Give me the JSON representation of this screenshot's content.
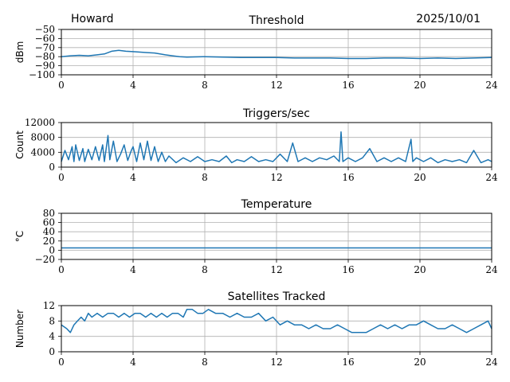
{
  "header": {
    "station": "Howard",
    "date": "2025/10/01"
  },
  "colors": {
    "series": "#1f77b4",
    "grid": "#b0b0b0"
  },
  "chart_data": [
    {
      "type": "line",
      "title": "Threshold",
      "ylabel": "dBm",
      "xlim": [
        0,
        24
      ],
      "ylim": [
        -100,
        -50
      ],
      "xticks": [
        0,
        4,
        8,
        12,
        16,
        20,
        24
      ],
      "xtick_labels": [
        "0",
        "4",
        "8",
        "12",
        "16",
        "20",
        "24"
      ],
      "yticks": [
        -50,
        -60,
        -70,
        -80,
        -90,
        -100
      ],
      "ytick_labels": [
        "−50",
        "−60",
        "−70",
        "−80",
        "−90",
        "−100"
      ],
      "grid": true,
      "series": [
        {
          "name": "threshold",
          "x": [
            0,
            0.5,
            1,
            1.5,
            2,
            2.4,
            2.8,
            3.2,
            3.6,
            4.0,
            4.4,
            4.8,
            5.2,
            5.5,
            5.8,
            6.2,
            6.6,
            7.0,
            8,
            9,
            10,
            11,
            12,
            13,
            14,
            15,
            16,
            17,
            18,
            19,
            20,
            21,
            22,
            23,
            24
          ],
          "y": [
            -80,
            -79,
            -78.5,
            -79,
            -78,
            -77,
            -74,
            -73,
            -74,
            -74.5,
            -75,
            -75.5,
            -76,
            -77,
            -78,
            -79,
            -80,
            -80.5,
            -80,
            -80.5,
            -81,
            -81,
            -81,
            -81.5,
            -81.5,
            -81.5,
            -82,
            -82,
            -81.5,
            -81.5,
            -82,
            -81.5,
            -82,
            -81.5,
            -81
          ]
        }
      ]
    },
    {
      "type": "line",
      "title": "Triggers/sec",
      "ylabel": "Count",
      "xlim": [
        0,
        24
      ],
      "ylim": [
        0,
        12000
      ],
      "xticks": [
        0,
        4,
        8,
        12,
        16,
        20,
        24
      ],
      "xtick_labels": [
        "0",
        "4",
        "8",
        "12",
        "16",
        "20",
        "24"
      ],
      "yticks": [
        0,
        4000,
        8000,
        12000
      ],
      "ytick_labels": [
        "0",
        "4000",
        "8000",
        "12000"
      ],
      "grid": true,
      "series": [
        {
          "name": "triggers",
          "x": [
            0,
            0.2,
            0.4,
            0.6,
            0.7,
            0.8,
            1.0,
            1.2,
            1.3,
            1.5,
            1.7,
            1.9,
            2.1,
            2.3,
            2.4,
            2.6,
            2.7,
            2.9,
            3.1,
            3.3,
            3.5,
            3.7,
            3.9,
            4.0,
            4.2,
            4.4,
            4.6,
            4.8,
            5.0,
            5.2,
            5.4,
            5.6,
            5.8,
            6.0,
            6.4,
            6.8,
            7.2,
            7.6,
            8.0,
            8.4,
            8.8,
            9.2,
            9.5,
            9.8,
            10.2,
            10.6,
            11.0,
            11.4,
            11.8,
            12.2,
            12.6,
            12.9,
            13.2,
            13.6,
            14.0,
            14.4,
            14.8,
            15.2,
            15.5,
            15.6,
            15.7,
            16.0,
            16.4,
            16.8,
            17.2,
            17.6,
            18.0,
            18.4,
            18.8,
            19.2,
            19.5,
            19.6,
            19.8,
            20.2,
            20.6,
            21.0,
            21.4,
            21.8,
            22.2,
            22.6,
            23.0,
            23.4,
            23.8,
            24.0
          ],
          "y": [
            1500,
            4500,
            2000,
            5500,
            1500,
            6000,
            1800,
            5000,
            1500,
            4800,
            2000,
            5500,
            1800,
            6000,
            1500,
            8500,
            2000,
            7000,
            1500,
            3500,
            6000,
            1800,
            4500,
            5500,
            1500,
            6500,
            2000,
            7000,
            1800,
            5500,
            1500,
            4000,
            1500,
            3000,
            1200,
            2500,
            1500,
            2800,
            1500,
            2000,
            1500,
            3000,
            1200,
            2000,
            1500,
            2800,
            1500,
            2000,
            1500,
            3500,
            1500,
            6500,
            1500,
            2500,
            1500,
            2500,
            2000,
            3000,
            1500,
            9500,
            1500,
            2500,
            1500,
            2500,
            5000,
            1500,
            2500,
            1500,
            2500,
            1500,
            7500,
            1500,
            2500,
            1500,
            2500,
            1200,
            2000,
            1500,
            2000,
            1200,
            4500,
            1200,
            2000,
            1500
          ]
        }
      ]
    },
    {
      "type": "line",
      "title": "Temperature",
      "ylabel": "°C",
      "xlim": [
        0,
        24
      ],
      "ylim": [
        -20,
        80
      ],
      "xticks": [
        0,
        4,
        8,
        12,
        16,
        20,
        24
      ],
      "xtick_labels": [
        "0",
        "4",
        "8",
        "12",
        "16",
        "20",
        "24"
      ],
      "yticks": [
        -20,
        0,
        20,
        40,
        60,
        80
      ],
      "ytick_labels": [
        "−20",
        "0",
        "20",
        "40",
        "60",
        "80"
      ],
      "grid": true,
      "series": [
        {
          "name": "temperature",
          "x": [
            0,
            24
          ],
          "y": [
            5,
            5
          ]
        }
      ]
    },
    {
      "type": "line",
      "title": "Satellites Tracked",
      "ylabel": "Number",
      "xlim": [
        0,
        24
      ],
      "ylim": [
        0,
        12
      ],
      "xticks": [
        0,
        4,
        8,
        12,
        16,
        20,
        24
      ],
      "xtick_labels": [
        "0",
        "4",
        "8",
        "12",
        "16",
        "20",
        "24"
      ],
      "yticks": [
        0,
        4,
        8,
        12
      ],
      "ytick_labels": [
        "0",
        "4",
        "8",
        "12"
      ],
      "grid": true,
      "series": [
        {
          "name": "satellites",
          "x": [
            0,
            0.3,
            0.5,
            0.7,
            0.9,
            1.1,
            1.3,
            1.5,
            1.7,
            2.0,
            2.3,
            2.6,
            2.9,
            3.2,
            3.5,
            3.8,
            4.1,
            4.4,
            4.7,
            5.0,
            5.3,
            5.6,
            5.9,
            6.2,
            6.5,
            6.8,
            7.0,
            7.3,
            7.6,
            7.9,
            8.2,
            8.6,
            9.0,
            9.4,
            9.8,
            10.2,
            10.6,
            11.0,
            11.4,
            11.8,
            12.2,
            12.6,
            13.0,
            13.4,
            13.8,
            14.2,
            14.6,
            15.0,
            15.4,
            15.8,
            16.2,
            16.6,
            17.0,
            17.4,
            17.8,
            18.2,
            18.6,
            19.0,
            19.4,
            19.8,
            20.2,
            20.6,
            21.0,
            21.4,
            21.8,
            22.2,
            22.6,
            23.0,
            23.4,
            23.8,
            24.0
          ],
          "y": [
            7,
            6,
            5,
            7,
            8,
            9,
            8,
            10,
            9,
            10,
            9,
            10,
            10,
            9,
            10,
            9,
            10,
            10,
            9,
            10,
            9,
            10,
            9,
            10,
            10,
            9,
            11,
            11,
            10,
            10,
            11,
            10,
            10,
            9,
            10,
            9,
            9,
            10,
            8,
            9,
            7,
            8,
            7,
            7,
            6,
            7,
            6,
            6,
            7,
            6,
            5,
            5,
            5,
            6,
            7,
            6,
            7,
            6,
            7,
            7,
            8,
            7,
            6,
            6,
            7,
            6,
            5,
            6,
            7,
            8,
            6
          ]
        }
      ]
    }
  ]
}
